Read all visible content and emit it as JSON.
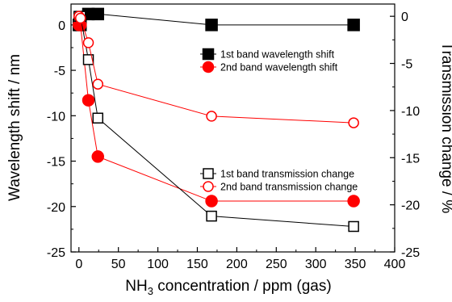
{
  "chart_data": {
    "type": "scatter",
    "x_axis": {
      "label_main": "NH",
      "label_sub": "3",
      "label_rest": " concentration / ppm (gas)",
      "min": -10,
      "max": 400,
      "ticks": [
        0,
        50,
        100,
        150,
        200,
        250,
        300,
        350,
        400
      ],
      "tick_labels": [
        "0",
        "50",
        "100",
        "150",
        "200",
        "250",
        "300",
        "350",
        "400"
      ]
    },
    "y_left": {
      "label": "Wavelength shift / nm",
      "min": -25,
      "max": 2.3,
      "ticks": [
        0,
        -5,
        -10,
        -15,
        -20,
        -25
      ],
      "tick_labels": [
        "0",
        "-5",
        "-10",
        "-15",
        "-20",
        "-25"
      ]
    },
    "y_right": {
      "label": "Transmission change / %",
      "min": -25,
      "max": 1.3,
      "ticks": [
        0,
        -5,
        -10,
        -15,
        -20,
        -25
      ],
      "tick_labels": [
        "0",
        "-5",
        "-10",
        "-15",
        "-20",
        "-25"
      ]
    },
    "series": [
      {
        "name": "1st band wavelength shift",
        "axis": "left",
        "color": "#000000",
        "marker": "square",
        "filled": true,
        "x": [
          0,
          2,
          12,
          24,
          168,
          348
        ],
        "y": [
          0,
          0,
          1.2,
          1.2,
          0,
          0
        ]
      },
      {
        "name": "2nd band wavelength shift",
        "axis": "left",
        "color": "#ff0000",
        "marker": "circle",
        "filled": true,
        "x": [
          0,
          2,
          12,
          24,
          168,
          348
        ],
        "y": [
          0,
          0,
          -8.3,
          -14.5,
          -19.4,
          -19.4
        ]
      },
      {
        "name": "1st band  transmission change",
        "axis": "right",
        "color": "#000000",
        "marker": "square",
        "filled": false,
        "x": [
          0,
          2,
          12,
          24,
          168,
          348
        ],
        "y": [
          0,
          0,
          -4.6,
          -10.8,
          -21.2,
          -22.3
        ]
      },
      {
        "name": "2nd band  transmission change",
        "axis": "right",
        "color": "#ff0000",
        "marker": "circle",
        "filled": false,
        "x": [
          0,
          2,
          12,
          24,
          168,
          348
        ],
        "y": [
          0,
          -0.2,
          -2.8,
          -7.2,
          -10.6,
          -11.3
        ]
      }
    ],
    "legends": [
      {
        "placement": "upper-right-center",
        "series": [
          0,
          1
        ]
      },
      {
        "placement": "lower-right-center",
        "series": [
          2,
          3
        ]
      }
    ]
  }
}
